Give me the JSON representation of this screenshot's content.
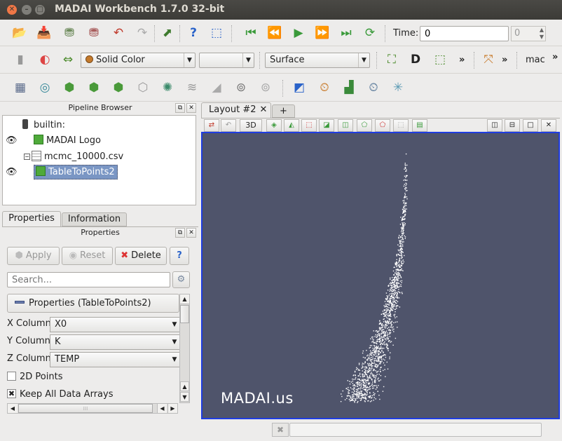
{
  "window": {
    "title": "MADAI Workbench 1.7.0 32-bit"
  },
  "toolbar1": {
    "time_label": "Time:",
    "time_value": "0",
    "timestep_value": "0"
  },
  "toolbar2": {
    "color_mode": "Solid Color",
    "component": "",
    "representation": "Surface",
    "macros_label": "mac"
  },
  "pipeline": {
    "title": "Pipeline Browser",
    "items": [
      {
        "label": "builtin:"
      },
      {
        "label": "MADAI Logo"
      },
      {
        "label": "mcmc_10000.csv"
      },
      {
        "label": "TableToPoints2"
      }
    ]
  },
  "tabs": {
    "properties": "Properties",
    "information": "Information"
  },
  "properties": {
    "title": "Properties",
    "apply": "Apply",
    "reset": "Reset",
    "delete": "Delete",
    "help": "?",
    "search_placeholder": "Search...",
    "section": "Properties (TableToPoints2)",
    "x_label": "X Column",
    "x_value": "X0",
    "y_label": "Y Column",
    "y_value": "K",
    "z_label": "Z Column",
    "z_value": "TEMP",
    "points2d": "2D Points",
    "keep_arrays": "Keep All Data Arrays"
  },
  "layout": {
    "tab": "Layout #2",
    "add": "+",
    "mode_3d": "3D"
  },
  "viewport": {
    "watermark": "MADAI.us",
    "background": "#4f546b"
  },
  "colors": {
    "selection": "#7a96c4",
    "viewport_border": "#1f3de0"
  }
}
